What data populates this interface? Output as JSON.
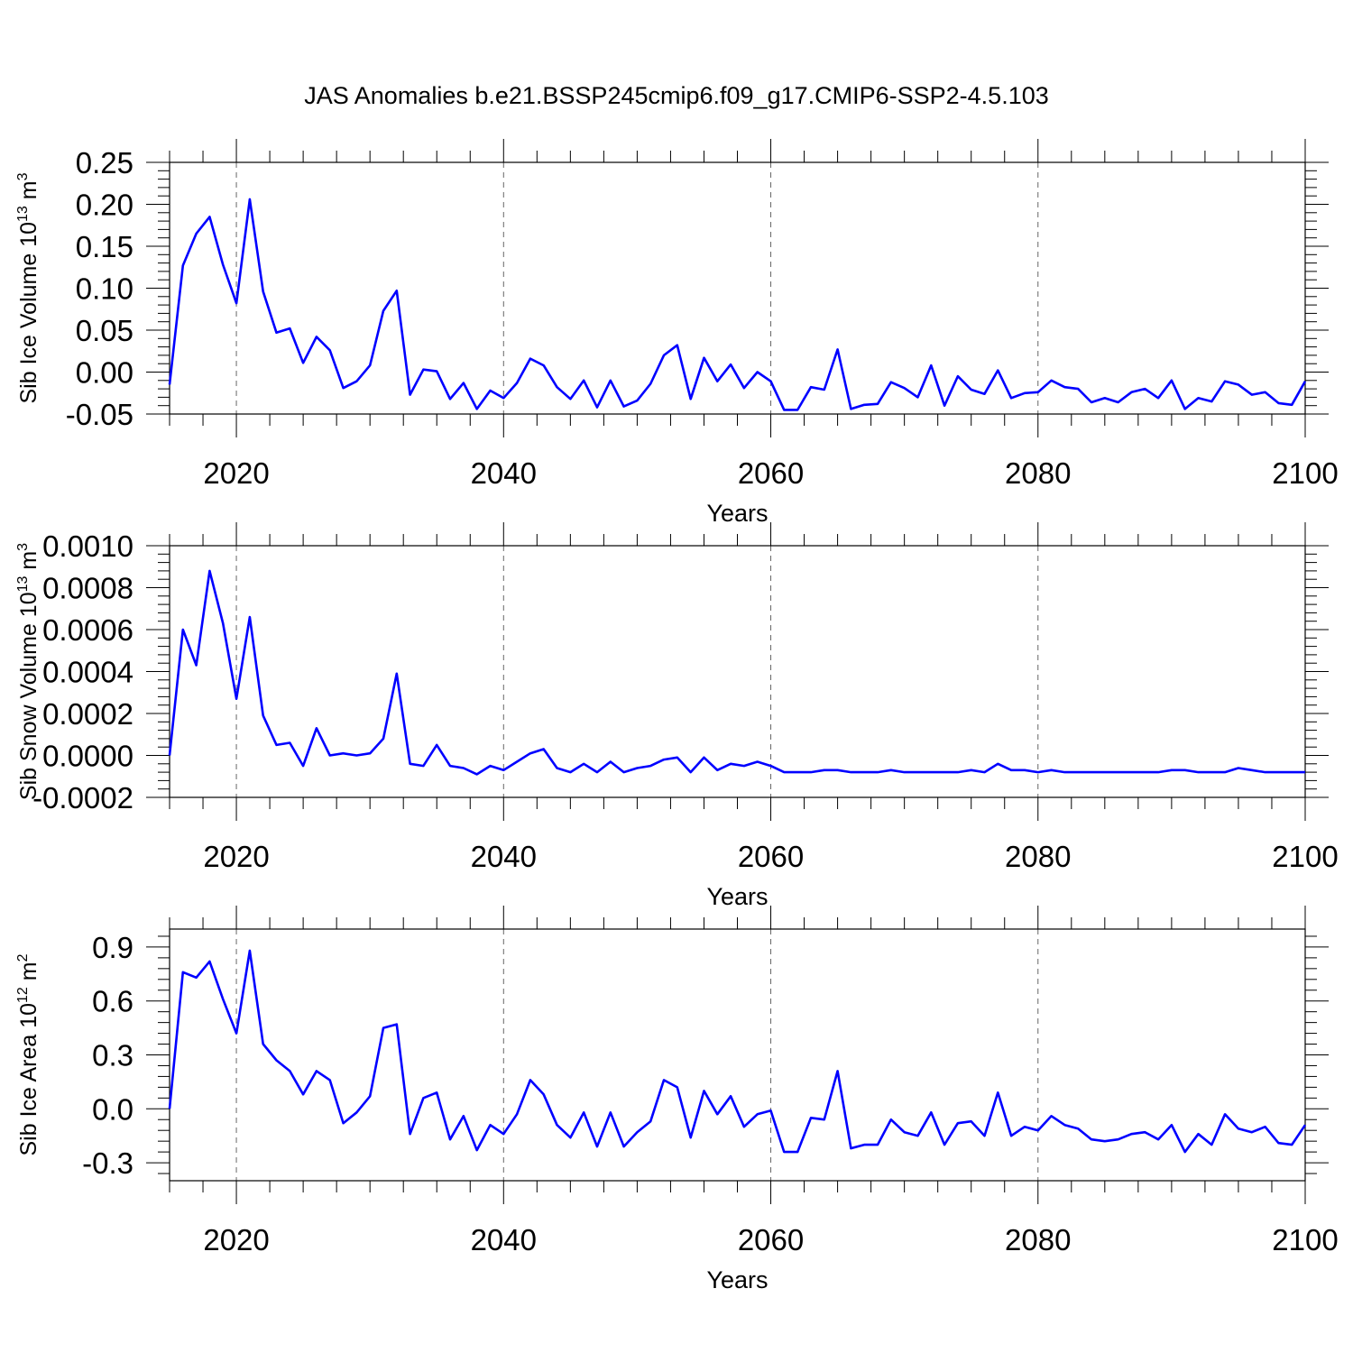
{
  "figure": {
    "title": "JAS Anomalies b.e21.BSSP245cmip6.f09_g17.CMIP6-SSP2-4.5.103"
  },
  "chart_data": [
    {
      "type": "line",
      "title": "",
      "xlabel": "Years",
      "ylabel": "Sib Ice Volume 10",
      "ylabel_sup": "13",
      "ylabel_unit": "m",
      "ylabel_unit_sup": "3",
      "xlim": [
        2015,
        2100
      ],
      "ylim": [
        -0.05,
        0.25
      ],
      "xticks": [
        2020,
        2040,
        2060,
        2080,
        2100
      ],
      "xtick_labels": [
        "2020",
        "2040",
        "2060",
        "2080",
        "2100"
      ],
      "yticks": [
        -0.05,
        0.0,
        0.05,
        0.1,
        0.15,
        0.2,
        0.25
      ],
      "ytick_labels": [
        "-0.05",
        "0.00",
        "0.05",
        "0.10",
        "0.15",
        "0.20",
        "0.25"
      ],
      "grid": "vertical dashed at major x ticks",
      "x_start": 2015,
      "x_step": 1,
      "values": [
        -0.015,
        0.127,
        0.165,
        0.185,
        0.128,
        0.082,
        0.206,
        0.096,
        0.047,
        0.052,
        0.011,
        0.042,
        0.026,
        -0.019,
        -0.011,
        0.008,
        0.073,
        0.097,
        -0.027,
        0.003,
        0.001,
        -0.032,
        -0.013,
        -0.044,
        -0.022,
        -0.031,
        -0.013,
        0.016,
        0.008,
        -0.018,
        -0.032,
        -0.01,
        -0.042,
        -0.01,
        -0.041,
        -0.034,
        -0.014,
        0.02,
        0.032,
        -0.032,
        0.017,
        -0.011,
        0.009,
        -0.019,
        0.0,
        -0.011,
        -0.045,
        -0.045,
        -0.018,
        -0.021,
        0.027,
        -0.044,
        -0.039,
        -0.038,
        -0.012,
        -0.019,
        -0.03,
        0.008,
        -0.04,
        -0.005,
        -0.021,
        -0.026,
        0.002,
        -0.031,
        -0.025,
        -0.024,
        -0.01,
        -0.018,
        -0.02,
        -0.036,
        -0.031,
        -0.036,
        -0.024,
        -0.02,
        -0.031,
        -0.01,
        -0.044,
        -0.031,
        -0.035,
        -0.011,
        -0.015,
        -0.027,
        -0.024,
        -0.037,
        -0.039,
        -0.011
      ]
    },
    {
      "type": "line",
      "title": "",
      "xlabel": "Years",
      "ylabel": "Sib Snow Volume 10",
      "ylabel_sup": "13",
      "ylabel_unit": "m",
      "ylabel_unit_sup": "3",
      "xlim": [
        2015,
        2100
      ],
      "ylim": [
        -0.0002,
        0.001
      ],
      "xticks": [
        2020,
        2040,
        2060,
        2080,
        2100
      ],
      "xtick_labels": [
        "2020",
        "2040",
        "2060",
        "2080",
        "2100"
      ],
      "yticks": [
        -0.0002,
        0.0,
        0.0002,
        0.0004,
        0.0006,
        0.0008,
        0.001
      ],
      "ytick_labels": [
        "-0.0002",
        "0.0000",
        "0.0002",
        "0.0004",
        "0.0006",
        "0.0008",
        "0.0010"
      ],
      "grid": "vertical dashed at major x ticks",
      "x_start": 2015,
      "x_step": 1,
      "values": [
        0.0,
        0.0006,
        0.00043,
        0.00088,
        0.00063,
        0.00027,
        0.00066,
        0.00019,
        5e-05,
        6e-05,
        -5e-05,
        0.00013,
        0.0,
        1e-05,
        0.0,
        1e-05,
        8e-05,
        0.00039,
        -4e-05,
        -5e-05,
        5e-05,
        -5e-05,
        -6e-05,
        -9e-05,
        -5e-05,
        -7e-05,
        -3e-05,
        1e-05,
        3e-05,
        -6e-05,
        -8e-05,
        -4e-05,
        -8e-05,
        -3e-05,
        -8e-05,
        -6e-05,
        -5e-05,
        -2e-05,
        -1e-05,
        -8e-05,
        -1e-05,
        -7e-05,
        -4e-05,
        -5e-05,
        -3e-05,
        -5e-05,
        -8e-05,
        -8e-05,
        -8e-05,
        -7e-05,
        -7e-05,
        -8e-05,
        -8e-05,
        -8e-05,
        -7e-05,
        -8e-05,
        -8e-05,
        -8e-05,
        -8e-05,
        -8e-05,
        -7e-05,
        -8e-05,
        -4e-05,
        -7e-05,
        -7e-05,
        -8e-05,
        -7e-05,
        -8e-05,
        -8e-05,
        -8e-05,
        -8e-05,
        -8e-05,
        -8e-05,
        -8e-05,
        -8e-05,
        -7e-05,
        -7e-05,
        -8e-05,
        -8e-05,
        -8e-05,
        -6e-05,
        -7e-05,
        -8e-05,
        -8e-05,
        -8e-05,
        -8e-05
      ]
    },
    {
      "type": "line",
      "title": "",
      "xlabel": "Years",
      "ylabel": "Sib Ice Area 10",
      "ylabel_sup": "12",
      "ylabel_unit": "m",
      "ylabel_unit_sup": "2",
      "xlim": [
        2015,
        2100
      ],
      "ylim": [
        -0.4,
        1.0
      ],
      "xticks": [
        2020,
        2040,
        2060,
        2080,
        2100
      ],
      "xtick_labels": [
        "2020",
        "2040",
        "2060",
        "2080",
        "2100"
      ],
      "yticks": [
        -0.3,
        0.0,
        0.3,
        0.6,
        0.9
      ],
      "ytick_labels": [
        "-0.3",
        "0.0",
        "0.3",
        "0.6",
        "0.9"
      ],
      "grid": "vertical dashed at major x ticks",
      "x_start": 2015,
      "x_step": 1,
      "values": [
        0.0,
        0.76,
        0.73,
        0.82,
        0.61,
        0.42,
        0.88,
        0.36,
        0.27,
        0.21,
        0.08,
        0.21,
        0.16,
        -0.08,
        -0.02,
        0.07,
        0.45,
        0.47,
        -0.14,
        0.06,
        0.09,
        -0.17,
        -0.04,
        -0.23,
        -0.09,
        -0.14,
        -0.03,
        0.16,
        0.08,
        -0.09,
        -0.16,
        -0.02,
        -0.21,
        -0.02,
        -0.21,
        -0.13,
        -0.07,
        0.16,
        0.12,
        -0.16,
        0.1,
        -0.03,
        0.07,
        -0.1,
        -0.03,
        -0.01,
        -0.24,
        -0.24,
        -0.05,
        -0.06,
        0.21,
        -0.22,
        -0.2,
        -0.2,
        -0.06,
        -0.13,
        -0.15,
        -0.02,
        -0.2,
        -0.08,
        -0.07,
        -0.15,
        0.09,
        -0.15,
        -0.1,
        -0.12,
        -0.04,
        -0.09,
        -0.11,
        -0.17,
        -0.18,
        -0.17,
        -0.14,
        -0.13,
        -0.17,
        -0.09,
        -0.24,
        -0.14,
        -0.2,
        -0.03,
        -0.11,
        -0.13,
        -0.1,
        -0.19,
        -0.2,
        -0.09
      ]
    }
  ]
}
